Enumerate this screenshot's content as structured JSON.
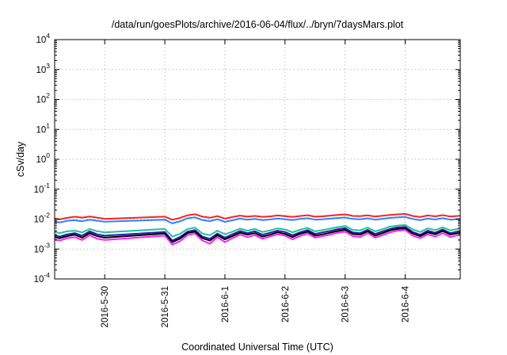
{
  "chart_data": {
    "type": "line",
    "title": "/data/run/goesPlots/archive/2016-06-04/flux/../bryn/7daysMars.plot",
    "xlabel": "Coordinated Universal Time (UTC)",
    "ylabel": "cSv/day",
    "yscale": "log",
    "ylim": [
      0.0001,
      10000
    ],
    "xlim": [
      "2016-05-29T04:00",
      "2016-06-04T22:00"
    ],
    "grid": true,
    "y_ticks": [
      {
        "value": 0.0001,
        "base": "10",
        "exp": "-4"
      },
      {
        "value": 0.001,
        "base": "10",
        "exp": "-3"
      },
      {
        "value": 0.01,
        "base": "10",
        "exp": "-2"
      },
      {
        "value": 0.1,
        "base": "10",
        "exp": "-1"
      },
      {
        "value": 1,
        "base": "10",
        "exp": "0"
      },
      {
        "value": 10,
        "base": "10",
        "exp": "1"
      },
      {
        "value": 100,
        "base": "10",
        "exp": "2"
      },
      {
        "value": 1000,
        "base": "10",
        "exp": "3"
      },
      {
        "value": 10000,
        "base": "10",
        "exp": "4"
      }
    ],
    "x_ticks": [
      {
        "value": "2016-05-30T00:00",
        "label": "2016-5-30"
      },
      {
        "value": "2016-05-31T00:00",
        "label": "2016-5-31"
      },
      {
        "value": "2016-06-01T00:00",
        "label": "2016-6-1"
      },
      {
        "value": "2016-06-02T00:00",
        "label": "2016-6-2"
      },
      {
        "value": "2016-06-03T00:00",
        "label": "2016-6-3"
      },
      {
        "value": "2016-06-04T00:00",
        "label": "2016-6-4"
      }
    ],
    "x": [
      "2016-05-29T04:00",
      "2016-05-29T06:00",
      "2016-05-29T09:00",
      "2016-05-29T12:00",
      "2016-05-29T15:00",
      "2016-05-29T18:00",
      "2016-05-29T21:00",
      "2016-05-30T00:00",
      "2016-05-31T00:00",
      "2016-05-31T03:00",
      "2016-05-31T06:00",
      "2016-05-31T09:00",
      "2016-05-31T12:00",
      "2016-05-31T15:00",
      "2016-05-31T18:00",
      "2016-05-31T21:00",
      "2016-06-01T00:00",
      "2016-06-01T03:00",
      "2016-06-01T06:00",
      "2016-06-01T09:00",
      "2016-06-01T12:00",
      "2016-06-01T15:00",
      "2016-06-01T18:00",
      "2016-06-01T21:00",
      "2016-06-02T00:00",
      "2016-06-02T03:00",
      "2016-06-02T06:00",
      "2016-06-02T09:00",
      "2016-06-02T12:00",
      "2016-06-02T15:00",
      "2016-06-02T18:00",
      "2016-06-02T21:00",
      "2016-06-03T00:00",
      "2016-06-03T03:00",
      "2016-06-03T06:00",
      "2016-06-03T09:00",
      "2016-06-03T12:00",
      "2016-06-03T15:00",
      "2016-06-03T18:00",
      "2016-06-03T21:00",
      "2016-06-04T00:00",
      "2016-06-04T03:00",
      "2016-06-04T06:00",
      "2016-06-04T09:00",
      "2016-06-04T12:00",
      "2016-06-04T15:00",
      "2016-06-04T18:00",
      "2016-06-04T22:00"
    ],
    "series": [
      {
        "color": "#ff2020",
        "values": [
          0.0105,
          0.0098,
          0.011,
          0.012,
          0.0112,
          0.0122,
          0.0112,
          0.0102,
          0.0121,
          0.0095,
          0.0109,
          0.0134,
          0.0146,
          0.0121,
          0.0111,
          0.0126,
          0.0104,
          0.0117,
          0.0131,
          0.0121,
          0.0128,
          0.0119,
          0.0123,
          0.0132,
          0.0126,
          0.0118,
          0.0127,
          0.0135,
          0.0121,
          0.0124,
          0.0131,
          0.0137,
          0.0144,
          0.0128,
          0.0126,
          0.0133,
          0.0122,
          0.0129,
          0.0138,
          0.0144,
          0.0149,
          0.0128,
          0.0117,
          0.0132,
          0.0124,
          0.0136,
          0.0122,
          0.0129
        ]
      },
      {
        "color": "#3080ff",
        "values": [
          0.0082,
          0.0077,
          0.0088,
          0.0092,
          0.0085,
          0.0095,
          0.0088,
          0.0082,
          0.0096,
          0.0072,
          0.0084,
          0.0106,
          0.0115,
          0.0093,
          0.0086,
          0.0099,
          0.0081,
          0.0091,
          0.0104,
          0.0096,
          0.0101,
          0.0093,
          0.0097,
          0.0105,
          0.0099,
          0.0093,
          0.0101,
          0.0107,
          0.0096,
          0.0098,
          0.0104,
          0.0109,
          0.0114,
          0.0101,
          0.0099,
          0.0106,
          0.0096,
          0.0102,
          0.011,
          0.0115,
          0.0118,
          0.0101,
          0.0092,
          0.0104,
          0.0097,
          0.0107,
          0.0096,
          0.0102
        ]
      },
      {
        "color": "#20c0a0",
        "values": [
          0.0037,
          0.0034,
          0.0039,
          0.0041,
          0.0036,
          0.0047,
          0.0039,
          0.0036,
          0.0047,
          0.0026,
          0.0032,
          0.0046,
          0.0052,
          0.0033,
          0.0029,
          0.0041,
          0.0031,
          0.0038,
          0.0048,
          0.0041,
          0.0047,
          0.0037,
          0.0042,
          0.0049,
          0.0045,
          0.0036,
          0.0044,
          0.0051,
          0.0039,
          0.0043,
          0.0048,
          0.0054,
          0.0059,
          0.0044,
          0.0042,
          0.0052,
          0.0039,
          0.0046,
          0.0056,
          0.0061,
          0.0064,
          0.0045,
          0.0037,
          0.0049,
          0.0043,
          0.0053,
          0.0042,
          0.0048
        ]
      },
      {
        "color": "#2020a0",
        "values": [
          0.0029,
          0.0026,
          0.0031,
          0.0034,
          0.0028,
          0.0039,
          0.0031,
          0.0028,
          0.0037,
          0.0019,
          0.0025,
          0.0038,
          0.0043,
          0.0026,
          0.0022,
          0.0033,
          0.0024,
          0.0031,
          0.004,
          0.0034,
          0.0039,
          0.003,
          0.0035,
          0.0041,
          0.0037,
          0.0029,
          0.0036,
          0.0043,
          0.0032,
          0.0036,
          0.004,
          0.0046,
          0.005,
          0.0036,
          0.0034,
          0.0044,
          0.0032,
          0.0039,
          0.0047,
          0.0053,
          0.0055,
          0.0037,
          0.003,
          0.0041,
          0.0035,
          0.0045,
          0.0034,
          0.004
        ]
      },
      {
        "color": "#000000",
        "values": [
          0.0025,
          0.0023,
          0.0027,
          0.003,
          0.0024,
          0.0034,
          0.0027,
          0.0024,
          0.0033,
          0.0017,
          0.0022,
          0.0034,
          0.0038,
          0.0023,
          0.0019,
          0.0029,
          0.0021,
          0.0027,
          0.0035,
          0.003,
          0.0034,
          0.0026,
          0.003,
          0.0036,
          0.0032,
          0.0025,
          0.0032,
          0.0038,
          0.0028,
          0.0031,
          0.0035,
          0.004,
          0.0044,
          0.0032,
          0.003,
          0.0039,
          0.0028,
          0.0034,
          0.0042,
          0.0047,
          0.0049,
          0.0033,
          0.0027,
          0.0036,
          0.0031,
          0.004,
          0.003,
          0.0035
        ]
      },
      {
        "color": "#ff20ff",
        "values": [
          0.0021,
          0.0019,
          0.0023,
          0.0025,
          0.002,
          0.0029,
          0.0022,
          0.002,
          0.0028,
          0.0014,
          0.0018,
          0.0029,
          0.0033,
          0.0019,
          0.0015,
          0.0025,
          0.0017,
          0.0023,
          0.003,
          0.0025,
          0.0029,
          0.0022,
          0.0026,
          0.0031,
          0.0028,
          0.0021,
          0.0027,
          0.0033,
          0.0024,
          0.0027,
          0.003,
          0.0035,
          0.0038,
          0.0027,
          0.0025,
          0.0034,
          0.0024,
          0.0029,
          0.0036,
          0.0041,
          0.0043,
          0.0028,
          0.0023,
          0.0031,
          0.0026,
          0.0034,
          0.0025,
          0.003
        ]
      }
    ]
  }
}
